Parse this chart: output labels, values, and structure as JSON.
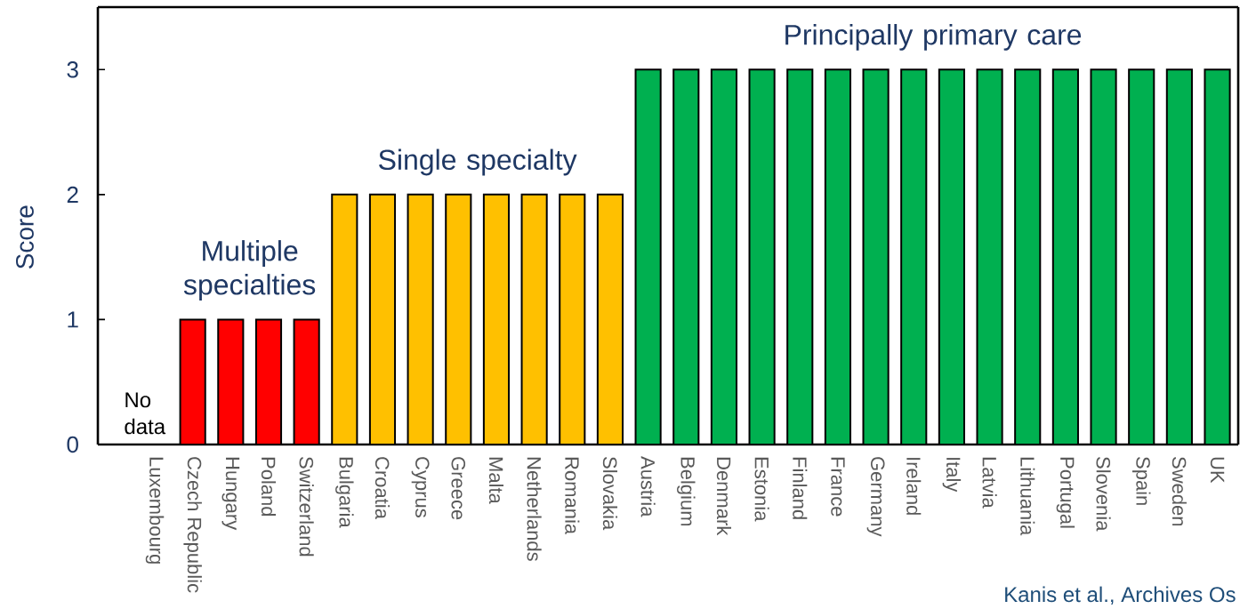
{
  "chart_data": {
    "type": "bar",
    "ylabel": "Score",
    "categories": [
      "Luxembourg",
      "Czech Republic",
      "Hungary",
      "Poland",
      "Switzerland",
      "Bulgaria",
      "Croatia",
      "Cyprus",
      "Greece",
      "Malta",
      "Netherlands",
      "Romania",
      "Slovakia",
      "Austria",
      "Belgium",
      "Denmark",
      "Estonia",
      "Finland",
      "France",
      "Germany",
      "Ireland",
      "Italy",
      "Latvia",
      "Lithuania",
      "Portugal",
      "Slovenia",
      "Spain",
      "Sweden",
      "UK"
    ],
    "values": [
      null,
      1,
      1,
      1,
      1,
      2,
      2,
      2,
      2,
      2,
      2,
      2,
      2,
      3,
      3,
      3,
      3,
      3,
      3,
      3,
      3,
      3,
      3,
      3,
      3,
      3,
      3,
      3,
      3
    ],
    "colors": [
      null,
      "#ff0000",
      "#ff0000",
      "#ff0000",
      "#ff0000",
      "#ffc000",
      "#ffc000",
      "#ffc000",
      "#ffc000",
      "#ffc000",
      "#ffc000",
      "#ffc000",
      "#ffc000",
      "#00b050",
      "#00b050",
      "#00b050",
      "#00b050",
      "#00b050",
      "#00b050",
      "#00b050",
      "#00b050",
      "#00b050",
      "#00b050",
      "#00b050",
      "#00b050",
      "#00b050",
      "#00b050",
      "#00b050",
      "#00b050"
    ],
    "ylim": [
      0,
      3.5
    ],
    "yticks": [
      0,
      1,
      2,
      3
    ],
    "annotations": [
      "No data",
      "Multiple specialties",
      "Single specialty",
      "Principally primary care",
      "Kanis et al., Archives Os"
    ]
  }
}
